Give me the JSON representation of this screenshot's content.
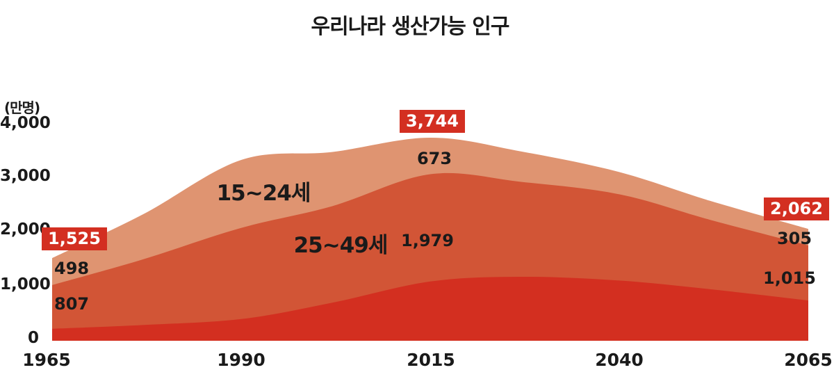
{
  "title": "우리나라 생산가능 인구",
  "y_axis": {
    "unit_label": "(만명)",
    "ticks": [
      "4,000",
      "3,000",
      "2,000",
      "1,000",
      "0"
    ]
  },
  "x_axis": {
    "ticks": [
      "1965",
      "1990",
      "2015",
      "2040",
      "2065"
    ]
  },
  "annotations": {
    "total_1965": "1,525",
    "total_2015": "3,744",
    "total_2065": "2,062",
    "age15_24_1965": "498",
    "age25_49_1965": "807",
    "age15_24_2015": "673",
    "age25_49_2015": "1,979",
    "age15_24_2065": "305",
    "age25_49_2065": "1,015",
    "series_label_15_24": "15~24세",
    "series_label_25_49": "25~49세"
  },
  "colors": {
    "badge_bg": "#d32f21",
    "badge_text": "#ffffff",
    "area_15_24": "#df9471",
    "area_25_49": "#d25536",
    "area_bottom": "#d32f20",
    "text": "#1a1a1a"
  },
  "chart_data": {
    "type": "area",
    "stacked": true,
    "title": "우리나라 생산가능 인구",
    "y_unit": "만명",
    "ylim": [
      0,
      4000
    ],
    "y_ticks": [
      0,
      1000,
      2000,
      3000,
      4000
    ],
    "x_ticks": [
      1965,
      1990,
      2015,
      2040,
      2065
    ],
    "x": [
      1965,
      1977,
      1990,
      2002,
      2015,
      2027,
      2040,
      2052,
      2065
    ],
    "series": [
      {
        "label": "",
        "color": "#d32f20",
        "values": [
          220,
          290,
          400,
          700,
          1092,
          1180,
          1110,
          950,
          742
        ]
      },
      {
        "label": "25~49세",
        "color": "#d25536",
        "values": [
          807,
          1210,
          1680,
          1780,
          1979,
          1750,
          1590,
          1280,
          1015
        ]
      },
      {
        "label": "15~24세",
        "color": "#df9471",
        "values": [
          498,
          830,
          1253,
          1000,
          673,
          560,
          410,
          350,
          305
        ]
      }
    ],
    "labeled_totals": [
      {
        "x": 1965,
        "total": 1525
      },
      {
        "x": 2015,
        "total": 3744
      },
      {
        "x": 2065,
        "total": 2062
      }
    ],
    "grid": false,
    "legend": "inline-labels"
  }
}
